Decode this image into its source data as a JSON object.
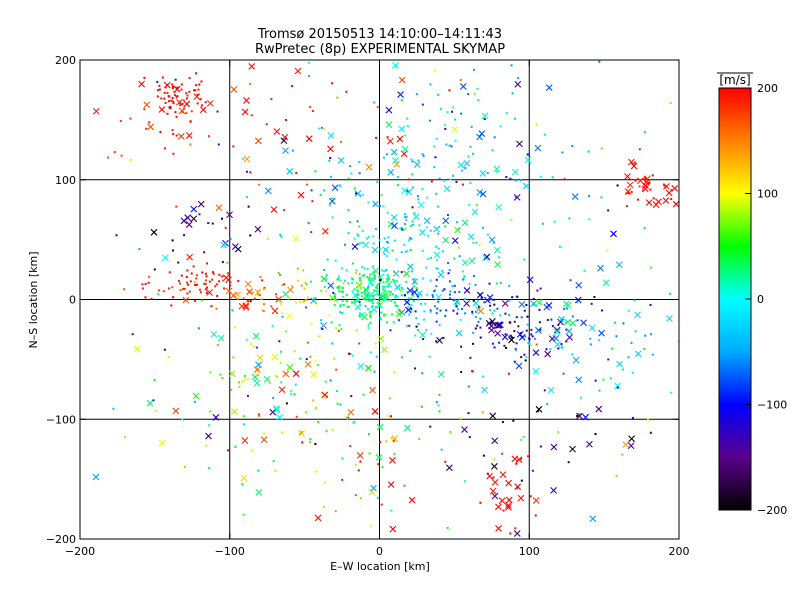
{
  "chart_data": {
    "type": "scatter",
    "title_line1": "Tromsø 20150513 14:10:00–14:11:43",
    "title_line2": "RwPretec (8p) EXPERIMENTAL SKYMAP",
    "xlabel": "E–W location [km]",
    "ylabel": "N–S location [km]",
    "xlim": [
      -200,
      200
    ],
    "ylim": [
      -200,
      200
    ],
    "xticks": [
      -200,
      -100,
      0,
      100,
      200
    ],
    "yticks": [
      -200,
      -100,
      0,
      100,
      200
    ],
    "xtick_labels": [
      "−200",
      "−100",
      "0",
      "100",
      "200"
    ],
    "ytick_labels": [
      "−200",
      "−100",
      "0",
      "100",
      "200"
    ],
    "grid": true,
    "colorbar": {
      "unit_label": "[m/s]",
      "range": [
        -200,
        200
      ],
      "ticks": [
        200,
        100,
        0,
        -100,
        -200
      ],
      "tick_labels": [
        "200",
        "100",
        "0",
        "−100",
        "−200"
      ],
      "colors": [
        "#000000",
        "#5a008c",
        "#0000ff",
        "#00aaff",
        "#00ffff",
        "#00ff00",
        "#ffff00",
        "#ff8000",
        "#ff0000"
      ]
    },
    "marker_types": [
      "dot",
      "x"
    ],
    "clusters": [
      {
        "x": -135,
        "y": 172,
        "sx": 9,
        "sy": 9,
        "n": 60,
        "v": 200,
        "vs": 8,
        "dot_ratio": 0.9
      },
      {
        "x": -145,
        "y": 155,
        "sx": 25,
        "sy": 20,
        "n": 30,
        "v": 190,
        "vs": 15,
        "dot_ratio": 0.8
      },
      {
        "x": -125,
        "y": 12,
        "sx": 18,
        "sy": 9,
        "n": 65,
        "v": 195,
        "vs": 12,
        "dot_ratio": 0.85
      },
      {
        "x": -85,
        "y": 5,
        "sx": 15,
        "sy": 8,
        "n": 35,
        "v": 160,
        "vs": 25,
        "dot_ratio": 0.85
      },
      {
        "x": -50,
        "y": 5,
        "sx": 14,
        "sy": 10,
        "n": 35,
        "v": 110,
        "vs": 25,
        "dot_ratio": 0.85
      },
      {
        "x": -5,
        "y": 5,
        "sx": 14,
        "sy": 12,
        "n": 190,
        "v": 25,
        "vs": 20,
        "dot_ratio": 0.9
      },
      {
        "x": 5,
        "y": 30,
        "sx": 30,
        "sy": 40,
        "n": 120,
        "v": 10,
        "vs": 25,
        "dot_ratio": 0.85
      },
      {
        "x": 20,
        "y": 70,
        "sx": 45,
        "sy": 50,
        "n": 150,
        "v": -20,
        "vs": 30,
        "dot_ratio": 0.8
      },
      {
        "x": 60,
        "y": 120,
        "sx": 55,
        "sy": 40,
        "n": 70,
        "v": -40,
        "vs": 40,
        "dot_ratio": 0.75
      },
      {
        "x": 50,
        "y": -5,
        "sx": 18,
        "sy": 10,
        "n": 60,
        "v": -60,
        "vs": 30,
        "dot_ratio": 0.85
      },
      {
        "x": 85,
        "y": -20,
        "sx": 22,
        "sy": 18,
        "n": 110,
        "v": -130,
        "vs": 50,
        "dot_ratio": 0.75
      },
      {
        "x": 140,
        "y": -30,
        "sx": 35,
        "sy": 30,
        "n": 90,
        "v": -40,
        "vs": 55,
        "dot_ratio": 0.75
      },
      {
        "x": 175,
        "y": 95,
        "sx": 14,
        "sy": 9,
        "n": 40,
        "v": 195,
        "vs": 10,
        "dot_ratio": 0.6
      },
      {
        "x": -60,
        "y": 150,
        "sx": 60,
        "sy": 40,
        "n": 55,
        "v": 190,
        "vs": 20,
        "dot_ratio": 0.55
      },
      {
        "x": -120,
        "y": 60,
        "sx": 20,
        "sy": 15,
        "n": 25,
        "v": -180,
        "vs": 30,
        "dot_ratio": 0.3
      },
      {
        "x": -60,
        "y": -70,
        "sx": 45,
        "sy": 45,
        "n": 120,
        "v": 70,
        "vs": 60,
        "dot_ratio": 0.75
      },
      {
        "x": -10,
        "y": -120,
        "sx": 40,
        "sy": 40,
        "n": 40,
        "v": 150,
        "vs": 50,
        "dot_ratio": 0.6
      },
      {
        "x": 85,
        "y": -160,
        "sx": 8,
        "sy": 18,
        "n": 30,
        "v": 200,
        "vs": 8,
        "dot_ratio": 0.5
      },
      {
        "x": 100,
        "y": -120,
        "sx": 40,
        "sy": 30,
        "n": 30,
        "v": -170,
        "vs": 30,
        "dot_ratio": 0.5
      },
      {
        "x": 0,
        "y": 0,
        "sx": 110,
        "sy": 110,
        "n": 220,
        "v": 0,
        "vs": 110,
        "dot_ratio": 0.7
      }
    ]
  }
}
